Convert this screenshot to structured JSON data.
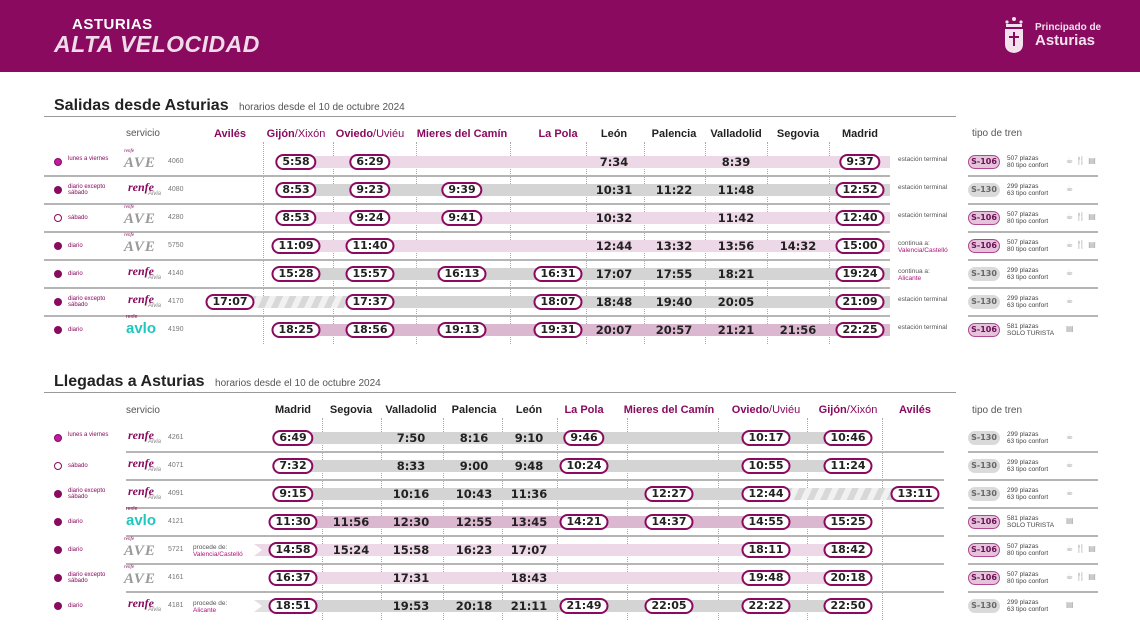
{
  "header": {
    "brand_top": "ASTURIAS",
    "brand_bottom": "ALTA VELOCIDAD",
    "gov_small": "Principado de",
    "gov_big": "Asturias",
    "color": "#890a5f"
  },
  "salidas": {
    "title": "Salidas desde Asturias",
    "subtitle": "horarios desde el 10 de octubre 2024",
    "servicio_label": "servicio",
    "tipo_label": "tipo de tren",
    "columns": [
      {
        "main": "Avilés",
        "alt": "",
        "asturian": true
      },
      {
        "main": "Gijón",
        "alt": "/Xixón",
        "asturian": true
      },
      {
        "main": "Oviedo",
        "alt": "/Uviéu",
        "asturian": true
      },
      {
        "main": "Mieres del Camín",
        "alt": "",
        "asturian": true
      },
      {
        "main": "La Pola",
        "alt": "",
        "asturian": true
      },
      {
        "main": "León",
        "alt": "",
        "asturian": false
      },
      {
        "main": "Palencia",
        "alt": "",
        "asturian": false
      },
      {
        "main": "Valladolid",
        "alt": "",
        "asturian": false
      },
      {
        "main": "Segovia",
        "alt": "",
        "asturian": false
      },
      {
        "main": "Madrid",
        "alt": "",
        "asturian": false
      }
    ],
    "rows": [
      {
        "days": "lunes a viernes",
        "brand": "AVE",
        "number": "4060",
        "times": [
          "",
          "5:58",
          "6:29",
          "",
          "",
          "7:34",
          "",
          "8:39",
          "",
          "9:37"
        ],
        "note": "estación terminal",
        "note_dest": "",
        "train": "S-106",
        "seats": "507 plazas",
        "comfort": "80 tipo confort",
        "amenities": "☕ 🍴 ▤"
      },
      {
        "days": "diario excepto sábado",
        "brand": "Alvia",
        "number": "4080",
        "times": [
          "",
          "8:53",
          "9:23",
          "9:39",
          "",
          "10:31",
          "11:22",
          "11:48",
          "",
          "12:52"
        ],
        "note": "estación terminal",
        "note_dest": "",
        "train": "S-130",
        "seats": "299 plazas",
        "comfort": "63 tipo confort",
        "amenities": "☕"
      },
      {
        "days": "sábado",
        "brand": "AVE",
        "number": "4280",
        "times": [
          "",
          "8:53",
          "9:24",
          "9:41",
          "",
          "10:32",
          "",
          "11:42",
          "",
          "12:40"
        ],
        "note": "estación terminal",
        "note_dest": "",
        "train": "S-106",
        "seats": "507 plazas",
        "comfort": "80 tipo confort",
        "amenities": "☕ 🍴 ▤"
      },
      {
        "days": "diario",
        "brand": "AVE",
        "number": "5750",
        "times": [
          "",
          "11:09",
          "11:40",
          "",
          "",
          "12:44",
          "13:32",
          "13:56",
          "14:32",
          "15:00"
        ],
        "note": "continua a:",
        "note_dest": "Valencia/Castelló",
        "train": "S-106",
        "seats": "507 plazas",
        "comfort": "80 tipo confort",
        "amenities": "☕ 🍴 ▤"
      },
      {
        "days": "diario",
        "brand": "Alvia",
        "number": "4140",
        "times": [
          "",
          "15:28",
          "15:57",
          "16:13",
          "16:31",
          "17:07",
          "17:55",
          "18:21",
          "",
          "19:24"
        ],
        "note": "continua a:",
        "note_dest": "Alicante",
        "train": "S-130",
        "seats": "299 plazas",
        "comfort": "63 tipo confort",
        "amenities": "☕"
      },
      {
        "days": "diario excepto sábado",
        "brand": "Alvia",
        "number": "4170",
        "times": [
          "17:07",
          "",
          "17:37",
          "",
          "18:07",
          "18:48",
          "19:40",
          "20:05",
          "",
          "21:09"
        ],
        "note": "estación terminal",
        "note_dest": "",
        "train": "S-130",
        "seats": "299 plazas",
        "comfort": "63 tipo confort",
        "amenities": "☕"
      },
      {
        "days": "diario",
        "brand": "Avlo",
        "number": "4190",
        "times": [
          "",
          "18:25",
          "18:56",
          "19:13",
          "19:31",
          "20:07",
          "20:57",
          "21:21",
          "21:56",
          "22:25"
        ],
        "note": "estación terminal",
        "note_dest": "",
        "train": "S-106",
        "seats": "581 plazas",
        "comfort": "SOLO TURISTA",
        "amenities": "▤"
      }
    ]
  },
  "llegadas": {
    "title": "Llegadas a Asturias",
    "subtitle": "horarios desde el 10 de octubre 2024",
    "servicio_label": "servicio",
    "tipo_label": "tipo de tren",
    "columns": [
      {
        "main": "Madrid",
        "alt": "",
        "asturian": false
      },
      {
        "main": "Segovia",
        "alt": "",
        "asturian": false
      },
      {
        "main": "Valladolid",
        "alt": "",
        "asturian": false
      },
      {
        "main": "Palencia",
        "alt": "",
        "asturian": false
      },
      {
        "main": "León",
        "alt": "",
        "asturian": false
      },
      {
        "main": "La Pola",
        "alt": "",
        "asturian": true
      },
      {
        "main": "Mieres del Camín",
        "alt": "",
        "asturian": true
      },
      {
        "main": "Oviedo",
        "alt": "/Uviéu",
        "asturian": true
      },
      {
        "main": "Gijón",
        "alt": "/Xixón",
        "asturian": true
      },
      {
        "main": "Avilés",
        "alt": "",
        "asturian": true
      }
    ],
    "rows": [
      {
        "days": "lunes a viernes",
        "brand": "Alvia",
        "number": "4261",
        "origin": "",
        "origin_dest": "",
        "times": [
          "6:49",
          "",
          "7:50",
          "8:16",
          "9:10",
          "9:46",
          "",
          "10:17",
          "10:46",
          ""
        ],
        "train": "S-130",
        "seats": "299 plazas",
        "comfort": "63 tipo confort",
        "amenities": "☕"
      },
      {
        "days": "sábado",
        "brand": "Alvia",
        "number": "4071",
        "origin": "",
        "origin_dest": "",
        "times": [
          "7:32",
          "",
          "8:33",
          "9:00",
          "9:48",
          "10:24",
          "",
          "10:55",
          "11:24",
          ""
        ],
        "train": "S-130",
        "seats": "299 plazas",
        "comfort": "63 tipo confort",
        "amenities": "☕"
      },
      {
        "days": "diario excepto sábado",
        "brand": "Alvia",
        "number": "4091",
        "origin": "",
        "origin_dest": "",
        "times": [
          "9:15",
          "",
          "10:16",
          "10:43",
          "11:36",
          "",
          "12:27",
          "12:44",
          "",
          "13:11"
        ],
        "train": "S-130",
        "seats": "299 plazas",
        "comfort": "63 tipo confort",
        "amenities": "☕"
      },
      {
        "days": "diario",
        "brand": "Avlo",
        "number": "4121",
        "origin": "",
        "origin_dest": "",
        "times": [
          "11:30",
          "11:56",
          "12:30",
          "12:55",
          "13:45",
          "14:21",
          "14:37",
          "14:55",
          "15:25",
          ""
        ],
        "train": "S-106",
        "seats": "581 plazas",
        "comfort": "SOLO TURISTA",
        "amenities": "▤"
      },
      {
        "days": "diario",
        "brand": "AVE",
        "number": "5721",
        "origin": "procede de:",
        "origin_dest": "Valencia/Castelló",
        "times": [
          "14:58",
          "15:24",
          "15:58",
          "16:23",
          "17:07",
          "",
          "",
          "18:11",
          "18:42",
          ""
        ],
        "train": "S-106",
        "seats": "507 plazas",
        "comfort": "80 tipo confort",
        "amenities": "☕ 🍴 ▤"
      },
      {
        "days": "diario excepto sábado",
        "brand": "AVE",
        "number": "4161",
        "origin": "",
        "origin_dest": "",
        "times": [
          "16:37",
          "",
          "17:31",
          "",
          "18:43",
          "",
          "",
          "19:48",
          "20:18",
          ""
        ],
        "train": "S-106",
        "seats": "507 plazas",
        "comfort": "80 tipo confort",
        "amenities": "☕ 🍴 ▤"
      },
      {
        "days": "diario",
        "brand": "Alvia",
        "number": "4181",
        "origin": "procede de:",
        "origin_dest": "Alicante",
        "times": [
          "18:51",
          "",
          "19:53",
          "20:18",
          "21:11",
          "21:49",
          "22:05",
          "22:22",
          "22:50",
          ""
        ],
        "train": "S-130",
        "seats": "299 plazas",
        "comfort": "63 tipo confort",
        "amenities": "▤"
      }
    ]
  },
  "logo_text": {
    "renfe": "renfe",
    "alvia": "Alvia",
    "ave": "AVE",
    "avlo": "avlo"
  }
}
